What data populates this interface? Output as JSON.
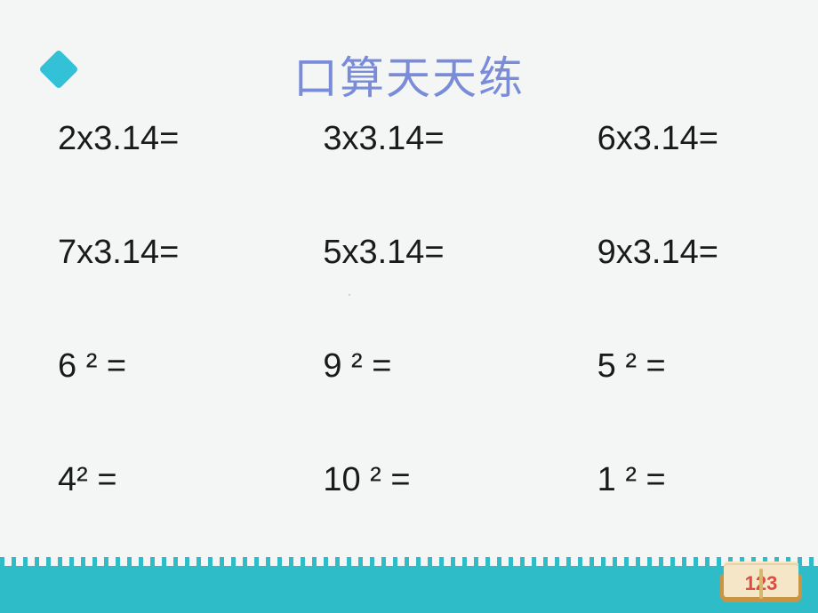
{
  "title": "口算天天练",
  "title_color": "#7a8cd8",
  "title_fontsize": 50,
  "bullet_color": "#33c1d7",
  "background_color": "#f4f5f5",
  "text_color": "#1a1a1a",
  "problem_fontsize": 38,
  "bottom_border_color": "#2fbcc9",
  "problems": {
    "rows": [
      [
        "2x3.14=",
        "3x3.14=",
        "6x3.14="
      ],
      [
        "7x3.14=",
        "5x3.14=",
        "9x3.14="
      ],
      [
        "6 ² =",
        "9 ² =",
        "5 ² ="
      ],
      [
        "4² =",
        "10 ² =",
        "1 ² ="
      ]
    ]
  },
  "badge": {
    "number": "123",
    "base_color": "#c99544",
    "page_color": "#f5e6c8",
    "number_color": "#d94e3f"
  }
}
